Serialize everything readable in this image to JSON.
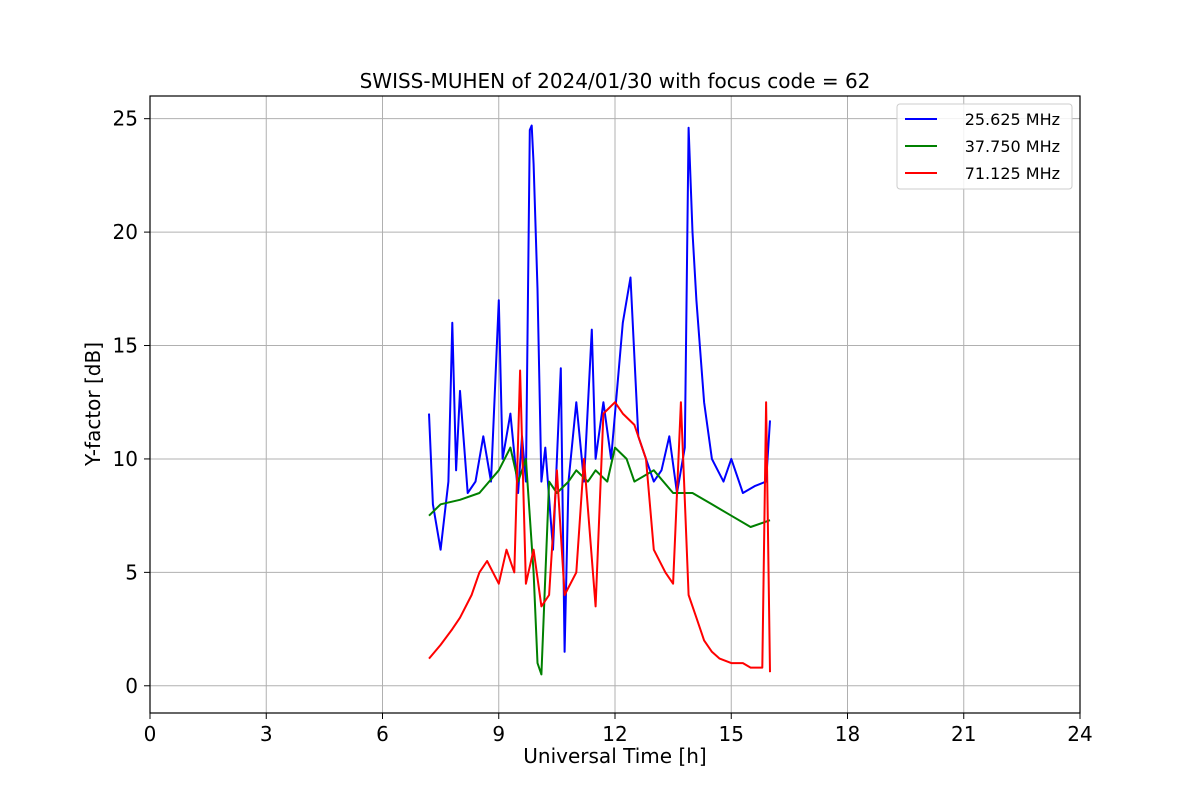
{
  "chart_data": {
    "type": "line",
    "title": "SWISS-MUHEN of 2024/01/30 with focus code = 62",
    "xlabel": "Universal Time [h]",
    "ylabel": "Y-factor [dB]",
    "xlim": [
      0,
      24
    ],
    "ylim": [
      -1.2,
      26
    ],
    "xticks": [
      0,
      3,
      6,
      9,
      12,
      15,
      18,
      21,
      24
    ],
    "yticks": [
      0,
      5,
      10,
      15,
      20,
      25
    ],
    "grid": true,
    "legend_position": "top-right",
    "series": [
      {
        "name": "25.625 MHz",
        "color": "#0000ff",
        "x": [
          7.2,
          7.3,
          7.5,
          7.7,
          7.8,
          7.9,
          8.0,
          8.2,
          8.4,
          8.6,
          8.8,
          9.0,
          9.1,
          9.3,
          9.5,
          9.6,
          9.7,
          9.8,
          9.85,
          9.9,
          10.0,
          10.1,
          10.2,
          10.4,
          10.6,
          10.7,
          10.8,
          11.0,
          11.2,
          11.4,
          11.5,
          11.7,
          11.9,
          12.0,
          12.2,
          12.4,
          12.6,
          12.8,
          13.0,
          13.2,
          13.4,
          13.6,
          13.8,
          13.9,
          14.0,
          14.1,
          14.3,
          14.5,
          14.8,
          15.0,
          15.3,
          15.6,
          15.9,
          16.0
        ],
        "y": [
          12.0,
          8.0,
          6.0,
          9.0,
          16.0,
          9.5,
          13.0,
          8.5,
          9.0,
          11.0,
          9.0,
          17.0,
          10.0,
          12.0,
          8.5,
          11.0,
          9.0,
          24.5,
          24.7,
          23.0,
          17.5,
          9.0,
          10.5,
          6.0,
          14.0,
          1.5,
          9.0,
          12.5,
          9.0,
          15.7,
          10.0,
          12.5,
          10.0,
          12.0,
          16.0,
          18.0,
          11.0,
          10.0,
          9.0,
          9.5,
          11.0,
          8.5,
          10.5,
          24.6,
          20.0,
          17.0,
          12.5,
          10.0,
          9.0,
          10.0,
          8.5,
          8.8,
          9.0,
          11.7
        ]
      },
      {
        "name": "37.750 MHz",
        "color": "#008000",
        "x": [
          7.2,
          7.5,
          8.0,
          8.5,
          9.0,
          9.3,
          9.5,
          9.7,
          9.9,
          10.0,
          10.1,
          10.3,
          10.5,
          10.8,
          11.0,
          11.3,
          11.5,
          11.8,
          12.0,
          12.3,
          12.5,
          13.0,
          13.5,
          14.0,
          14.5,
          15.0,
          15.5,
          16.0
        ],
        "y": [
          7.5,
          8.0,
          8.2,
          8.5,
          9.5,
          10.5,
          9.0,
          10.0,
          5.0,
          1.0,
          0.5,
          9.0,
          8.5,
          9.0,
          9.5,
          9.0,
          9.5,
          9.0,
          10.5,
          10.0,
          9.0,
          9.5,
          8.5,
          8.5,
          8.0,
          7.5,
          7.0,
          7.3
        ]
      },
      {
        "name": "71.125 MHz",
        "color": "#ff0000",
        "x": [
          7.2,
          7.5,
          7.8,
          8.0,
          8.3,
          8.5,
          8.7,
          9.0,
          9.2,
          9.4,
          9.55,
          9.7,
          9.9,
          10.1,
          10.3,
          10.5,
          10.7,
          11.0,
          11.2,
          11.5,
          11.7,
          12.0,
          12.2,
          12.5,
          12.8,
          13.0,
          13.3,
          13.5,
          13.7,
          13.9,
          14.1,
          14.3,
          14.5,
          14.7,
          15.0,
          15.3,
          15.5,
          15.8,
          15.9,
          16.0
        ],
        "y": [
          1.2,
          1.8,
          2.5,
          3.0,
          4.0,
          5.0,
          5.5,
          4.5,
          6.0,
          5.0,
          13.9,
          4.5,
          6.0,
          3.5,
          4.0,
          9.5,
          4.0,
          5.0,
          10.0,
          3.5,
          12.0,
          12.5,
          12.0,
          11.5,
          10.0,
          6.0,
          5.0,
          4.5,
          12.5,
          4.0,
          3.0,
          2.0,
          1.5,
          1.2,
          1.0,
          1.0,
          0.8,
          0.8,
          12.5,
          0.6
        ]
      }
    ]
  }
}
